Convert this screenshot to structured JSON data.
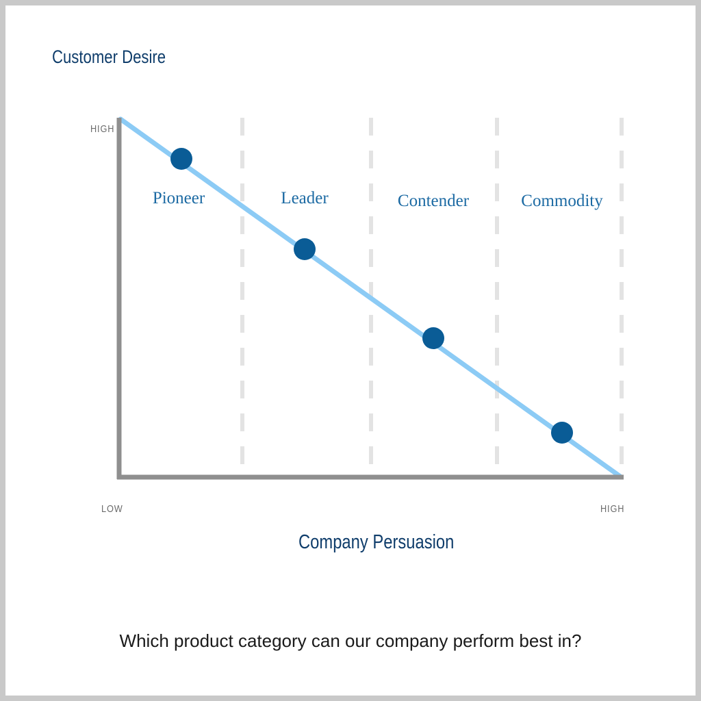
{
  "y_axis": {
    "title": "Customer Desire",
    "high_label": "HIGH"
  },
  "x_axis": {
    "title": "Company Persuasion",
    "low_label": "LOW",
    "high_label": "HIGH"
  },
  "categories": [
    {
      "name": "Pioneer"
    },
    {
      "name": "Leader"
    },
    {
      "name": "Contender"
    },
    {
      "name": "Commodity"
    }
  ],
  "question": "Which product category can our company perform best in?",
  "colors": {
    "title": "#0f3d6b",
    "category_label": "#1c6aa3",
    "dot": "#0a5c96",
    "line": "#8ccbf5",
    "axis": "#8f8f8f",
    "divider": "#e3e3e3"
  }
}
